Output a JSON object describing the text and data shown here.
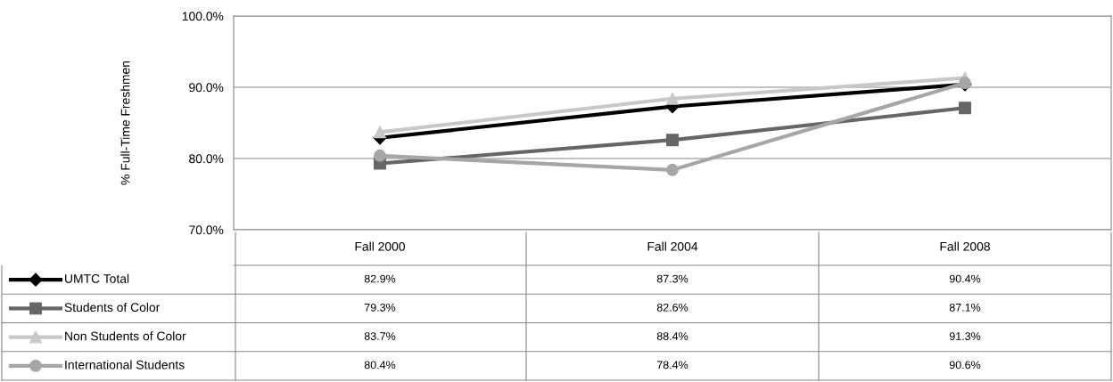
{
  "chart_data": {
    "type": "line",
    "ylabel": "% Full-Time Freshmen",
    "categories": [
      "Fall 2000",
      "Fall 2004",
      "Fall 2008"
    ],
    "series": [
      {
        "name": "UMTC Total",
        "color": "#000000",
        "marker": "diamond",
        "values": [
          82.9,
          87.3,
          90.4
        ],
        "value_labels": [
          "82.9%",
          "87.3%",
          "90.4%"
        ]
      },
      {
        "name": "Students of Color",
        "color": "#666666",
        "marker": "square",
        "values": [
          79.3,
          82.6,
          87.1
        ],
        "value_labels": [
          "79.3%",
          "82.6%",
          "87.1%"
        ]
      },
      {
        "name": "Non Students of Color",
        "color": "#c8c8c8",
        "marker": "triangle",
        "values": [
          83.7,
          88.4,
          91.3
        ],
        "value_labels": [
          "83.7%",
          "88.4%",
          "91.3%"
        ]
      },
      {
        "name": "International Students",
        "color": "#a6a6a6",
        "marker": "circle",
        "values": [
          80.4,
          78.4,
          90.6
        ],
        "value_labels": [
          "80.4%",
          "78.4%",
          "90.6%"
        ]
      }
    ],
    "ylim": [
      70,
      100
    ],
    "yticks": [
      {
        "value": 70,
        "label": "70.0%"
      },
      {
        "value": 80,
        "label": "80.0%"
      },
      {
        "value": 90,
        "label": "90.0%"
      },
      {
        "value": 100,
        "label": "100.0%"
      }
    ],
    "grid": "y",
    "legend": "bottom",
    "line_style": "solid"
  }
}
